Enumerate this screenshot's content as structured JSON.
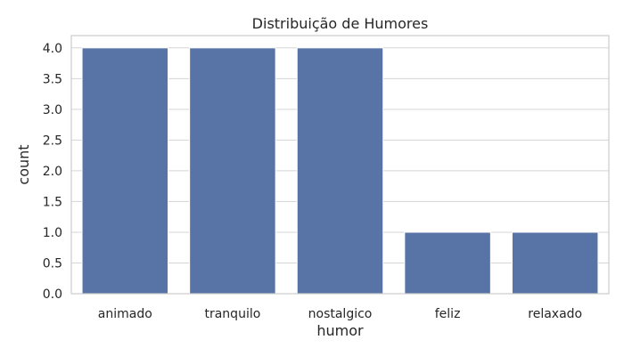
{
  "chart_data": {
    "type": "bar",
    "title": "Distribuição de Humores",
    "xlabel": "humor",
    "ylabel": "count",
    "categories": [
      "animado",
      "tranquilo",
      "nostalgico",
      "feliz",
      "relaxado"
    ],
    "values": [
      4,
      4,
      4,
      1,
      1
    ],
    "ylim": [
      0,
      4.2
    ],
    "yticks": [
      "0.0",
      "0.5",
      "1.0",
      "1.5",
      "2.0",
      "2.5",
      "3.0",
      "3.5",
      "4.0"
    ],
    "grid": true,
    "bar_color": "#5874a6",
    "grid_color": "#d5d5d5",
    "spine_color": "#cccccc"
  }
}
